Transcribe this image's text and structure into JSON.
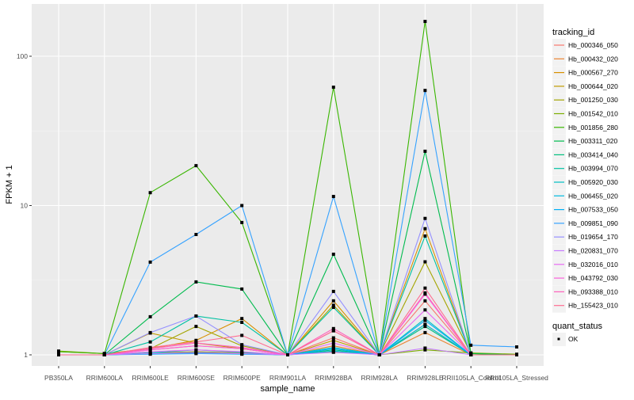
{
  "chart_data": {
    "type": "line",
    "xlabel": "sample_name",
    "ylabel": "FPKM + 1",
    "y_scale": "log10",
    "ylim": [
      0.92,
      225
    ],
    "y_ticks": [
      1,
      10,
      100
    ],
    "y_tick_labels": [
      "1",
      "10",
      "100"
    ],
    "grid": true,
    "legend_position": "right",
    "categories": [
      "PB350LA",
      "RRIM600LA",
      "RRIM600LE",
      "RRIM600SE",
      "RRIM600PE",
      "RRIM901LA",
      "RRIM928BA",
      "RRIM928LA",
      "RRIM928LE",
      "RRII105LA_Control",
      "RRII105LA_Stressed"
    ],
    "legend_title": "tracking_id",
    "point_legend_title": "quant_status",
    "point_legend_items": [
      "OK"
    ],
    "point_color": "#000000",
    "series": [
      {
        "name": "Hb_000346_050",
        "color": "#F8766D",
        "values": [
          1,
          1,
          1.08,
          1.15,
          1.1,
          1,
          1.3,
          1,
          2.3,
          1,
          1
        ]
      },
      {
        "name": "Hb_000432_020",
        "color": "#EA8331",
        "values": [
          1,
          1,
          1.03,
          1.05,
          1.03,
          1,
          1.15,
          1,
          1.41,
          1,
          1
        ]
      },
      {
        "name": "Hb_000567_270",
        "color": "#D89000",
        "values": [
          1,
          1,
          1.1,
          1.25,
          1.75,
          1,
          2.3,
          1,
          7.0,
          1,
          1
        ]
      },
      {
        "name": "Hb_000644_020",
        "color": "#C09B00",
        "values": [
          1,
          1,
          1.4,
          1.2,
          1.1,
          1,
          1.25,
          1,
          1.6,
          1,
          1
        ]
      },
      {
        "name": "Hb_001250_030",
        "color": "#A3A500",
        "values": [
          1.05,
          1.02,
          1.1,
          1.55,
          1.15,
          1,
          2.15,
          1,
          4.2,
          1.02,
          1
        ]
      },
      {
        "name": "Hb_001542_010",
        "color": "#7CAE00",
        "values": [
          1.06,
          1.02,
          1.02,
          1.03,
          1.02,
          1,
          1.05,
          1,
          1.08,
          1.03,
          1.01
        ]
      },
      {
        "name": "Hb_001856_280",
        "color": "#39B600",
        "values": [
          1.05,
          1.02,
          12.2,
          18.5,
          7.7,
          1,
          62,
          1,
          171,
          1.02,
          1
        ]
      },
      {
        "name": "Hb_003311_020",
        "color": "#00BB4E",
        "values": [
          1,
          1,
          1.8,
          3.08,
          2.76,
          1,
          4.72,
          1,
          23.1,
          1.02,
          1
        ]
      },
      {
        "name": "Hb_003414_040",
        "color": "#00BF7D",
        "values": [
          1,
          1,
          1.02,
          1.04,
          1.02,
          1,
          1.08,
          1,
          1.55,
          1,
          1
        ]
      },
      {
        "name": "Hb_003994_070",
        "color": "#00C1A3",
        "values": [
          1,
          1,
          1.22,
          1.82,
          1.65,
          1,
          2.08,
          1,
          6.25,
          1,
          1
        ]
      },
      {
        "name": "Hb_005920_030",
        "color": "#00BFC4",
        "values": [
          1,
          1,
          1.03,
          1.08,
          1.04,
          1,
          1.12,
          1,
          1.75,
          1,
          1
        ]
      },
      {
        "name": "Hb_006455_020",
        "color": "#00BAE0",
        "values": [
          1,
          1,
          1.02,
          1.03,
          1.02,
          1,
          1.06,
          1,
          1.6,
          1,
          1
        ]
      },
      {
        "name": "Hb_007533_050",
        "color": "#00B0F6",
        "values": [
          1,
          1,
          1.01,
          1.02,
          1.01,
          1,
          1.1,
          1,
          1.7,
          1,
          1
        ]
      },
      {
        "name": "Hb_009851_090",
        "color": "#35A2FF",
        "values": [
          1,
          1,
          4.18,
          6.4,
          10,
          1,
          11.5,
          1,
          59,
          1.16,
          1.13
        ]
      },
      {
        "name": "Hb_019654_170",
        "color": "#9590FF",
        "values": [
          1,
          1,
          1.41,
          1.82,
          1.17,
          1,
          2.66,
          1,
          8.2,
          1,
          1
        ]
      },
      {
        "name": "Hb_020831_070",
        "color": "#C77CFF",
        "values": [
          1,
          1,
          1.02,
          1.03,
          1.02,
          1,
          1.04,
          1,
          1.11,
          1,
          1
        ]
      },
      {
        "name": "Hb_032016_010",
        "color": "#E76BF3",
        "values": [
          1,
          1,
          1.05,
          1.08,
          1.05,
          1,
          1.2,
          1,
          2.0,
          1,
          1
        ]
      },
      {
        "name": "Hb_043792_030",
        "color": "#FA62DB",
        "values": [
          1,
          1,
          1.08,
          1.15,
          1.1,
          1,
          1.45,
          1,
          2.55,
          1,
          1
        ]
      },
      {
        "name": "Hb_093388_010",
        "color": "#FF62BC",
        "values": [
          1,
          1,
          1.1,
          1.2,
          1.12,
          1,
          1.5,
          1,
          2.6,
          1,
          1
        ]
      },
      {
        "name": "Hb_155423_010",
        "color": "#FF6C91",
        "values": [
          1,
          1,
          1.12,
          1.22,
          1.35,
          1,
          1.45,
          1,
          2.8,
          1,
          1
        ]
      }
    ]
  }
}
